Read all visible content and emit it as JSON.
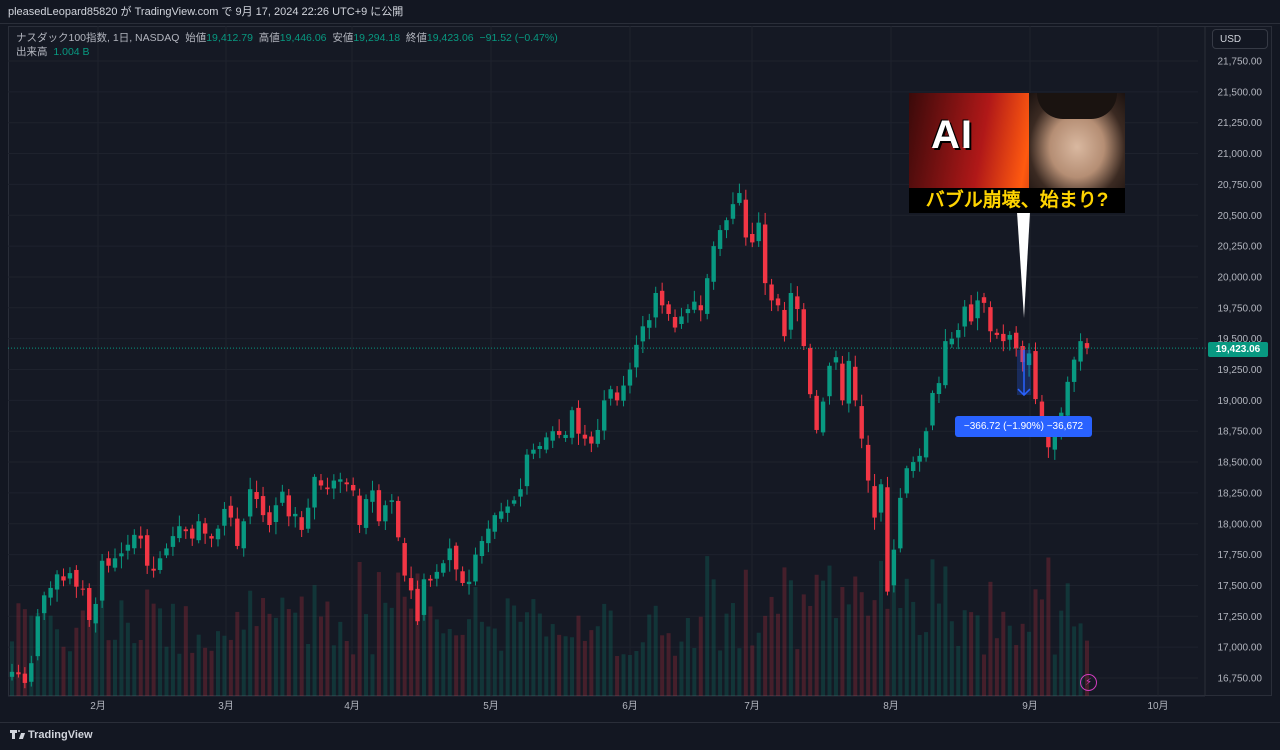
{
  "header": {
    "text": "pleasedLeopard85820 が TradingView.com で 9月 17, 2024 22:26 UTC+9 に公開"
  },
  "legend": {
    "symbol": "ナスダック100指数, 1日, NASDAQ",
    "open_label": "始値",
    "open": "19,412.79",
    "high_label": "高値",
    "high": "19,446.06",
    "low_label": "安値",
    "low": "19,294.18",
    "close_label": "終値",
    "close": "19,423.06",
    "change": "−91.52 (−0.47%)",
    "volume_label": "出来高",
    "volume": "1.004 B"
  },
  "currency_button": "USD",
  "last_price_tag": "19,423.06",
  "measure_label": "−366.72 (−1.90%) −36,672",
  "thumbnail": {
    "big_text": "AI",
    "caption": "バブル崩壊、始まり?"
  },
  "footer": {
    "logo_text": "TradingView"
  },
  "colors": {
    "up": "#089981",
    "down": "#f23645",
    "background": "#131722",
    "accent": "#2962ff"
  },
  "chart_data": {
    "type": "candlestick",
    "y_ticks": [
      "21,750.00",
      "21,500.00",
      "21,250.00",
      "21,000.00",
      "20,750.00",
      "20,500.00",
      "20,250.00",
      "20,000.00",
      "19,750.00",
      "19,500.00",
      "19,250.00",
      "19,000.00",
      "18,750.00",
      "18,500.00",
      "18,250.00",
      "18,000.00",
      "17,750.00",
      "17,500.00",
      "17,250.00",
      "17,000.00",
      "16,750.00"
    ],
    "x_ticks": [
      "2月",
      "3月",
      "4月",
      "5月",
      "6月",
      "7月",
      "8月",
      "9月",
      "10月"
    ],
    "ylim": [
      16650,
      21850
    ],
    "grid": true,
    "closes": [
      16800,
      16780,
      16710,
      16870,
      17250,
      17420,
      17480,
      17590,
      17540,
      17600,
      17490,
      17470,
      17220,
      17350,
      17700,
      17660,
      17720,
      17760,
      17830,
      17910,
      17880,
      17660,
      17620,
      17720,
      17800,
      17900,
      17980,
      17940,
      17880,
      18020,
      17920,
      17880,
      17960,
      18120,
      18050,
      17820,
      18020,
      18280,
      18200,
      18070,
      17990,
      18150,
      18260,
      18060,
      18080,
      17950,
      18130,
      18380,
      18310,
      18280,
      18350,
      18360,
      18320,
      18270,
      17990,
      18200,
      18270,
      18020,
      18150,
      18190,
      17890,
      17580,
      17460,
      17210,
      17550,
      17540,
      17610,
      17680,
      17800,
      17630,
      17520,
      17530,
      17750,
      17860,
      17960,
      18070,
      18100,
      18140,
      18190,
      18280,
      18560,
      18600,
      18630,
      18700,
      18750,
      18720,
      18720,
      18920,
      18730,
      18690,
      18650,
      18760,
      19000,
      19090,
      19000,
      19120,
      19250,
      19450,
      19600,
      19650,
      19870,
      19770,
      19700,
      19590,
      19680,
      19740,
      19800,
      19730,
      19990,
      20250,
      20380,
      20460,
      20590,
      20680,
      20320,
      20280,
      20440,
      19950,
      19810,
      19770,
      19520,
      19870,
      19740,
      19440,
      19050,
      18760,
      18990,
      19280,
      19350,
      19000,
      19320,
      19000,
      18690,
      18350,
      18050,
      18320,
      17450,
      17790,
      18210,
      18450,
      18500,
      18550,
      18750,
      19060,
      19140,
      19480,
      19500,
      19570,
      19760,
      19640,
      19810,
      19790,
      19560,
      19530,
      19480,
      19530,
      19420,
      19310,
      19380,
      19010,
      18850,
      18620,
      18780,
      18900,
      19150,
      19330,
      19480,
      19423
    ]
  }
}
